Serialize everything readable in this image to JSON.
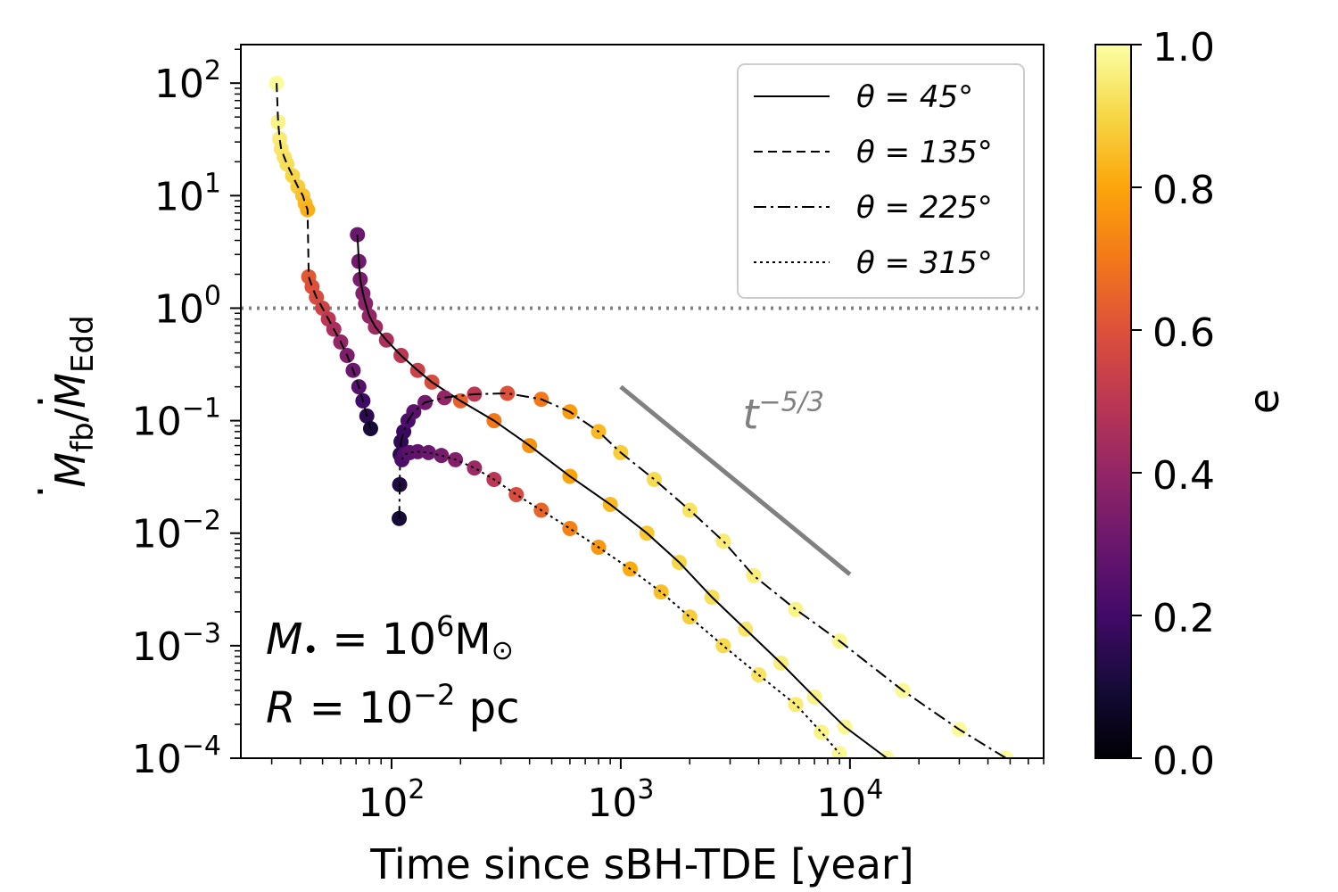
{
  "chart_data": {
    "type": "scatter",
    "title": "",
    "xlabel": "Time since sBH-TDE [year]",
    "ylabel": "Ṁ_fb/Ṁ_Edd",
    "xscale": "log",
    "yscale": "log",
    "xlim": [
      22,
      70000
    ],
    "ylim": [
      0.0001,
      220
    ],
    "x_ticks": [
      {
        "value": 100,
        "base": "10",
        "exp": "2"
      },
      {
        "value": 1000,
        "base": "10",
        "exp": "3"
      },
      {
        "value": 10000,
        "base": "10",
        "exp": "4"
      }
    ],
    "y_ticks": [
      {
        "value": 0.0001,
        "base": "10",
        "exp": "−4"
      },
      {
        "value": 0.001,
        "base": "10",
        "exp": "−3"
      },
      {
        "value": 0.01,
        "base": "10",
        "exp": "−2"
      },
      {
        "value": 0.1,
        "base": "10",
        "exp": "−1"
      },
      {
        "value": 1,
        "base": "10",
        "exp": "0"
      },
      {
        "value": 10,
        "base": "10",
        "exp": "1"
      },
      {
        "value": 100,
        "base": "10",
        "exp": "2"
      }
    ],
    "eddington_line": {
      "y": 1,
      "color": "#808080",
      "style": "dotted"
    },
    "reference_slope": {
      "label_base": "t",
      "label_exp": "−5/3",
      "x": [
        1000,
        10000
      ],
      "y": [
        0.2,
        0.0043
      ],
      "label_x": 3400,
      "label_y": 0.085,
      "color": "#808080"
    },
    "colorbar": {
      "label": "e",
      "min": 0,
      "max": 1,
      "ticks": [
        "0.0",
        "0.2",
        "0.4",
        "0.6",
        "0.8",
        "1.0"
      ],
      "colormap": "inferno"
    },
    "legend": {
      "placement": "top-right",
      "entries": [
        {
          "label": "θ = 45°",
          "style": "solid"
        },
        {
          "label": "θ = 135°",
          "style": "dashed"
        },
        {
          "label": "θ = 225°",
          "style": "dashdot"
        },
        {
          "label": "θ = 315°",
          "style": "dotted"
        }
      ]
    },
    "annotations": [
      {
        "var": "M",
        "sub": "•",
        "eq": " = 10",
        "exp": "6",
        "unit": "M",
        "unit_sub": "⊙"
      },
      {
        "var": "R",
        "eq": " = 10",
        "exp": "−2",
        "unit": " pc"
      }
    ],
    "series": [
      {
        "name": "θ = 45°",
        "style": "solid",
        "points": [
          {
            "x": 71,
            "y": 4.5,
            "e": 0.3
          },
          {
            "x": 72,
            "y": 2.6,
            "e": 0.32
          },
          {
            "x": 73,
            "y": 1.8,
            "e": 0.34
          },
          {
            "x": 75,
            "y": 1.35,
            "e": 0.36
          },
          {
            "x": 77,
            "y": 1.1,
            "e": 0.38
          },
          {
            "x": 80,
            "y": 0.85,
            "e": 0.4
          },
          {
            "x": 85,
            "y": 0.68,
            "e": 0.43
          },
          {
            "x": 95,
            "y": 0.52,
            "e": 0.46
          },
          {
            "x": 110,
            "y": 0.38,
            "e": 0.5
          },
          {
            "x": 130,
            "y": 0.28,
            "e": 0.54
          },
          {
            "x": 150,
            "y": 0.22,
            "e": 0.58
          },
          {
            "x": 200,
            "y": 0.15,
            "e": 0.64
          },
          {
            "x": 280,
            "y": 0.1,
            "e": 0.7
          },
          {
            "x": 400,
            "y": 0.06,
            "e": 0.76
          },
          {
            "x": 600,
            "y": 0.032,
            "e": 0.8
          },
          {
            "x": 900,
            "y": 0.018,
            "e": 0.84
          },
          {
            "x": 1300,
            "y": 0.01,
            "e": 0.87
          },
          {
            "x": 1800,
            "y": 0.0055,
            "e": 0.9
          },
          {
            "x": 2500,
            "y": 0.0027,
            "e": 0.92
          },
          {
            "x": 3500,
            "y": 0.0014,
            "e": 0.94
          },
          {
            "x": 5000,
            "y": 0.0007,
            "e": 0.96
          },
          {
            "x": 7000,
            "y": 0.00035,
            "e": 0.97
          },
          {
            "x": 9500,
            "y": 0.00019,
            "e": 0.98
          },
          {
            "x": 14500,
            "y": 0.0001,
            "e": 0.99
          }
        ]
      },
      {
        "name": "θ = 135°",
        "style": "dashed",
        "points": [
          {
            "x": 31.5,
            "y": 100,
            "e": 0.99
          },
          {
            "x": 32,
            "y": 45,
            "e": 0.97
          },
          {
            "x": 32.5,
            "y": 32,
            "e": 0.95
          },
          {
            "x": 33,
            "y": 26,
            "e": 0.94
          },
          {
            "x": 34,
            "y": 22,
            "e": 0.93
          },
          {
            "x": 35,
            "y": 19,
            "e": 0.92
          },
          {
            "x": 37,
            "y": 15,
            "e": 0.9
          },
          {
            "x": 39,
            "y": 12,
            "e": 0.88
          },
          {
            "x": 41,
            "y": 10,
            "e": 0.86
          },
          {
            "x": 42,
            "y": 8.5,
            "e": 0.84
          },
          {
            "x": 43,
            "y": 7.5,
            "e": 0.82
          },
          {
            "x": 43.5,
            "y": 1.9,
            "e": 0.62
          },
          {
            "x": 45,
            "y": 1.55,
            "e": 0.6
          },
          {
            "x": 47,
            "y": 1.25,
            "e": 0.58
          },
          {
            "x": 50,
            "y": 1.0,
            "e": 0.55
          },
          {
            "x": 53,
            "y": 0.8,
            "e": 0.5
          },
          {
            "x": 56,
            "y": 0.65,
            "e": 0.45
          },
          {
            "x": 60,
            "y": 0.5,
            "e": 0.4
          },
          {
            "x": 64,
            "y": 0.38,
            "e": 0.35
          },
          {
            "x": 68,
            "y": 0.28,
            "e": 0.3
          },
          {
            "x": 72,
            "y": 0.2,
            "e": 0.25
          },
          {
            "x": 75,
            "y": 0.15,
            "e": 0.2
          },
          {
            "x": 78,
            "y": 0.11,
            "e": 0.15
          },
          {
            "x": 81,
            "y": 0.085,
            "e": 0.1
          }
        ]
      },
      {
        "name": "θ = 225°",
        "style": "dashdot",
        "points": [
          {
            "x": 108,
            "y": 0.0135,
            "e": 0.1
          },
          {
            "x": 108.5,
            "y": 0.027,
            "e": 0.12
          },
          {
            "x": 109,
            "y": 0.05,
            "e": 0.14
          },
          {
            "x": 110,
            "y": 0.065,
            "e": 0.16
          },
          {
            "x": 113,
            "y": 0.08,
            "e": 0.18
          },
          {
            "x": 118,
            "y": 0.1,
            "e": 0.22
          },
          {
            "x": 125,
            "y": 0.12,
            "e": 0.26
          },
          {
            "x": 140,
            "y": 0.145,
            "e": 0.32
          },
          {
            "x": 170,
            "y": 0.16,
            "e": 0.4
          },
          {
            "x": 230,
            "y": 0.172,
            "e": 0.5
          },
          {
            "x": 320,
            "y": 0.175,
            "e": 0.6
          },
          {
            "x": 450,
            "y": 0.155,
            "e": 0.7
          },
          {
            "x": 600,
            "y": 0.12,
            "e": 0.78
          },
          {
            "x": 800,
            "y": 0.08,
            "e": 0.84
          },
          {
            "x": 1000,
            "y": 0.052,
            "e": 0.88
          },
          {
            "x": 1400,
            "y": 0.03,
            "e": 0.91
          },
          {
            "x": 2000,
            "y": 0.016,
            "e": 0.93
          },
          {
            "x": 2800,
            "y": 0.0085,
            "e": 0.95
          },
          {
            "x": 3800,
            "y": 0.0042,
            "e": 0.96
          },
          {
            "x": 5800,
            "y": 0.0021,
            "e": 0.97
          },
          {
            "x": 9000,
            "y": 0.0011,
            "e": 0.98
          },
          {
            "x": 17000,
            "y": 0.0004,
            "e": 0.985
          },
          {
            "x": 30000,
            "y": 0.00018,
            "e": 0.99
          },
          {
            "x": 48000,
            "y": 0.0001,
            "e": 0.995
          }
        ]
      },
      {
        "name": "θ = 315°",
        "style": "dotted",
        "points": [
          {
            "x": 111,
            "y": 0.045,
            "e": 0.22
          },
          {
            "x": 114,
            "y": 0.05,
            "e": 0.24
          },
          {
            "x": 120,
            "y": 0.052,
            "e": 0.26
          },
          {
            "x": 130,
            "y": 0.053,
            "e": 0.28
          },
          {
            "x": 145,
            "y": 0.052,
            "e": 0.3
          },
          {
            "x": 165,
            "y": 0.049,
            "e": 0.33
          },
          {
            "x": 190,
            "y": 0.045,
            "e": 0.36
          },
          {
            "x": 230,
            "y": 0.038,
            "e": 0.42
          },
          {
            "x": 280,
            "y": 0.03,
            "e": 0.5
          },
          {
            "x": 350,
            "y": 0.022,
            "e": 0.58
          },
          {
            "x": 450,
            "y": 0.016,
            "e": 0.65
          },
          {
            "x": 600,
            "y": 0.011,
            "e": 0.72
          },
          {
            "x": 800,
            "y": 0.0075,
            "e": 0.77
          },
          {
            "x": 1100,
            "y": 0.0048,
            "e": 0.81
          },
          {
            "x": 1500,
            "y": 0.003,
            "e": 0.85
          },
          {
            "x": 2000,
            "y": 0.0018,
            "e": 0.88
          },
          {
            "x": 2800,
            "y": 0.001,
            "e": 0.91
          },
          {
            "x": 4000,
            "y": 0.00055,
            "e": 0.93
          },
          {
            "x": 5800,
            "y": 0.0003,
            "e": 0.95
          },
          {
            "x": 7500,
            "y": 0.00017,
            "e": 0.97
          },
          {
            "x": 9000,
            "y": 0.00011,
            "e": 0.98
          }
        ]
      }
    ]
  }
}
